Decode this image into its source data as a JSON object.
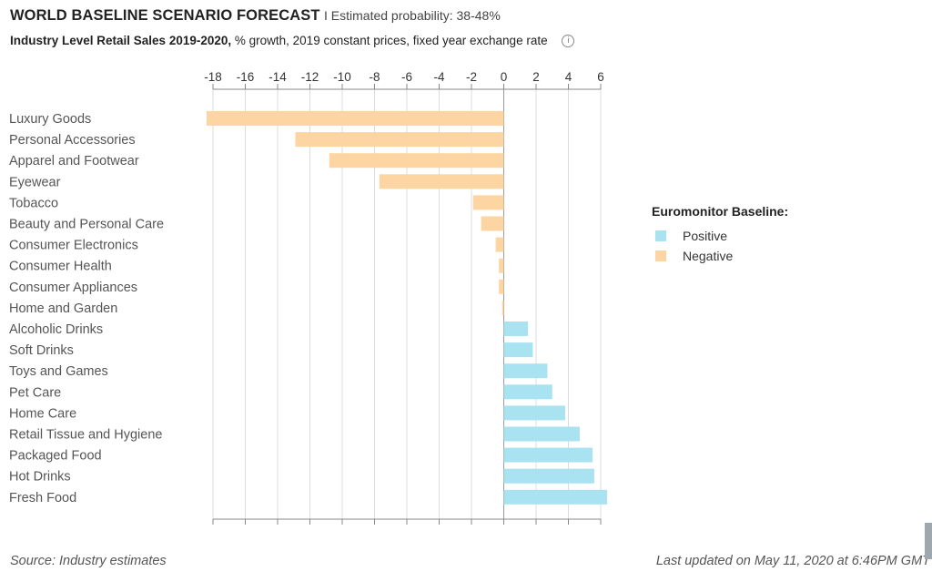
{
  "header": {
    "title": "WORLD BASELINE SCENARIO FORECAST",
    "probability": "I Estimated probability: 38-48%",
    "subtitle_bold": "Industry Level Retail Sales 2019-2020,",
    "subtitle_rest": " % growth, 2019 constant prices, fixed year exchange rate",
    "info_icon": "info-icon"
  },
  "legend": {
    "title": "Euromonitor Baseline:",
    "positive_label": "Positive",
    "negative_label": "Negative"
  },
  "colors": {
    "positive": "#a9e2f1",
    "negative": "#fdd5a2",
    "grid": "#dcdcdc",
    "axis": "#888888"
  },
  "footer": {
    "source": "Source: Industry estimates",
    "updated": "Last updated on May 11, 2020 at 6:46PM GMT"
  },
  "chart_data": {
    "type": "bar",
    "orientation": "horizontal",
    "categories": [
      "Luxury Goods",
      "Personal Accessories",
      "Apparel and Footwear",
      "Eyewear",
      "Tobacco",
      "Beauty and Personal Care",
      "Consumer Electronics",
      "Consumer Health",
      "Consumer Appliances",
      "Home and Garden",
      "Alcoholic Drinks",
      "Soft Drinks",
      "Toys and Games",
      "Pet Care",
      "Home Care",
      "Retail Tissue and Hygiene",
      "Packaged Food",
      "Hot Drinks",
      "Fresh Food"
    ],
    "values": [
      -18.4,
      -12.9,
      -10.8,
      -7.7,
      -1.9,
      -1.4,
      -0.5,
      -0.3,
      -0.3,
      -0.1,
      1.5,
      1.8,
      2.7,
      3.0,
      3.8,
      4.7,
      5.5,
      5.6,
      6.4
    ],
    "xlim": [
      -18,
      6
    ],
    "xticks": [
      -18,
      -16,
      -14,
      -12,
      -10,
      -8,
      -6,
      -4,
      -2,
      0,
      2,
      4,
      6
    ],
    "grid": true,
    "legend_position": "right"
  }
}
